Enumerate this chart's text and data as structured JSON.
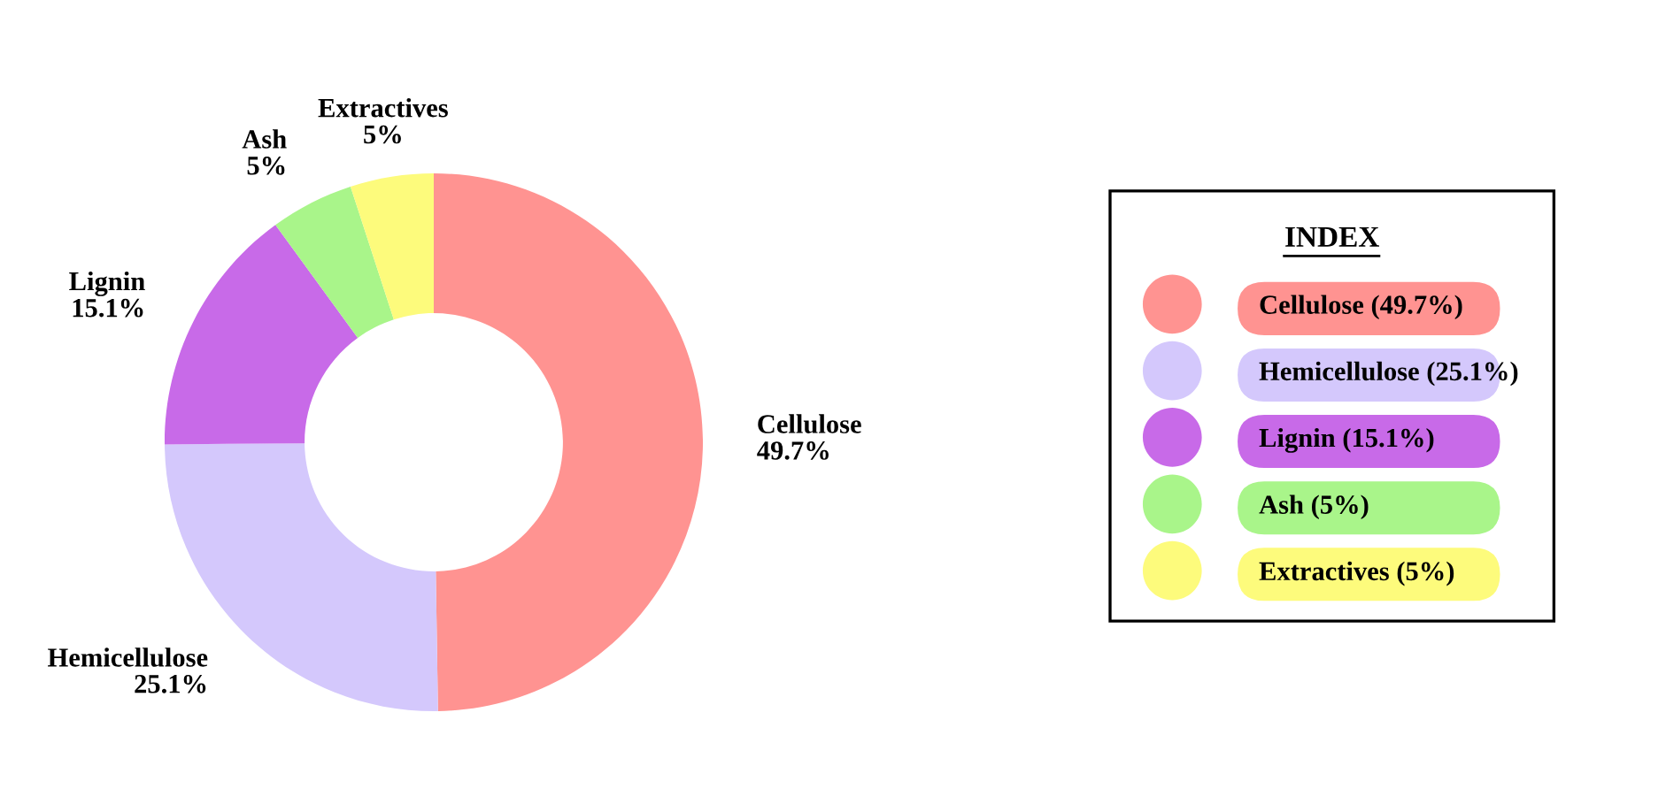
{
  "chart_data": {
    "type": "donut",
    "categories": [
      "Cellulose (49.7%)",
      "Hemicellulose (25.1%)",
      "Lignin (15.1%)",
      "Ash (5%)",
      "Extractives (5%)"
    ],
    "values": [
      49.7,
      25.1,
      15.1,
      5,
      5
    ],
    "annotations": [
      "Cellulose\n49.7%",
      "Hemicellulose\n25.1%",
      "Lignin\n15.1%",
      "Ash\n5%",
      "Extractives\n5%"
    ],
    "colors": [
      "#ff9391",
      "#d4c8fc",
      "#c86ae8",
      "#a9f58a",
      "#fdfb7c"
    ],
    "legend_title": "INDEX",
    "legend": "right"
  }
}
